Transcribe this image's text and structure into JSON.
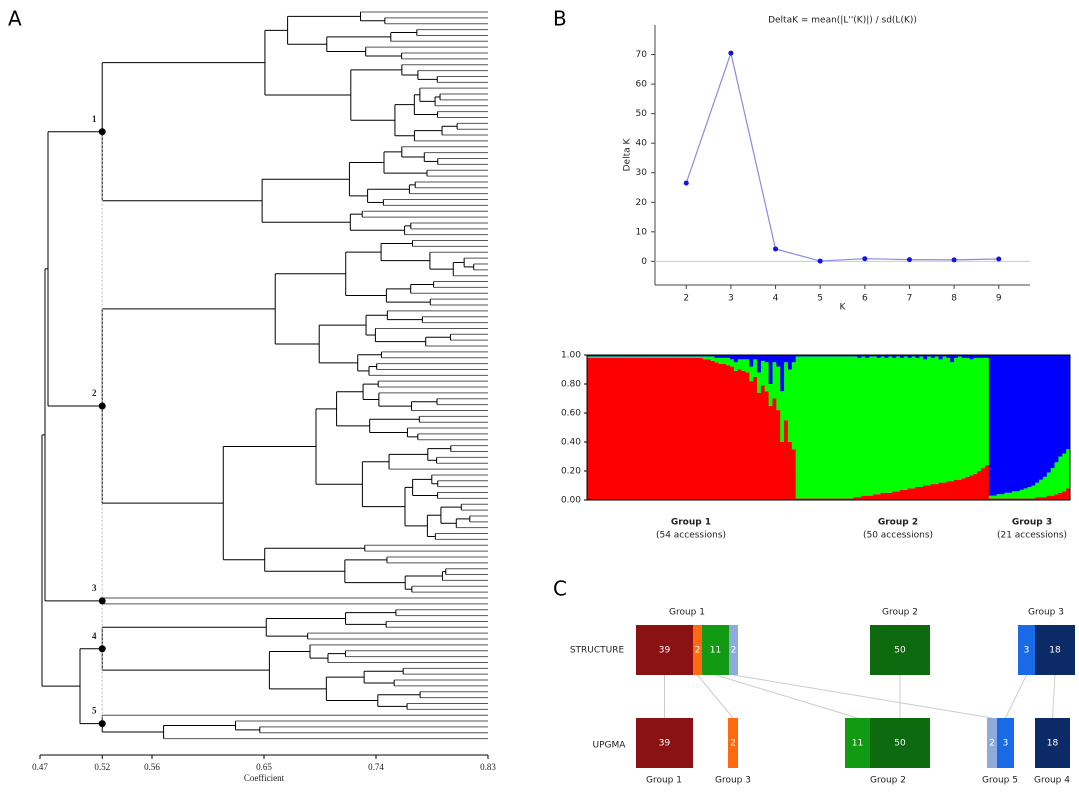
{
  "panel_labels": [
    "A",
    "B",
    "C"
  ],
  "chart_data": [
    {
      "type": "dendrogram",
      "xlabel": "Coefficient",
      "xlim": [
        0.47,
        0.83
      ],
      "xticks": [
        0.47,
        0.52,
        0.56,
        0.65,
        0.74,
        0.83
      ],
      "color": "#000000",
      "clusters": [
        {
          "label": "1",
          "height": 0.52
        },
        {
          "label": "2",
          "height": 0.52
        },
        {
          "label": "3",
          "height": 0.52
        },
        {
          "label": "4",
          "height": 0.52
        },
        {
          "label": "5",
          "height": 0.52
        }
      ]
    },
    {
      "type": "line",
      "title": "DeltaK = mean(|L''(K)|) / sd(L(K))",
      "xlabel": "K",
      "ylabel": "Delta K",
      "x": [
        2,
        3,
        4,
        5,
        6,
        7,
        8,
        9
      ],
      "values": [
        26.5,
        70.5,
        4.2,
        0.1,
        0.9,
        0.6,
        0.5,
        0.8
      ],
      "xlim": [
        1.3,
        9.7
      ],
      "xticks": [
        2,
        3,
        4,
        5,
        6,
        7,
        8,
        9
      ],
      "ylim": [
        -8,
        80
      ],
      "yticks": [
        0,
        10,
        20,
        30,
        40,
        50,
        60,
        70
      ],
      "color": "#8a8ae6",
      "marker_color": "#1414e0"
    },
    {
      "type": "stacked-bar",
      "ylim": [
        0,
        1
      ],
      "yticks": [
        {
          "value": 0,
          "label": "0.00"
        },
        {
          "value": 0.2,
          "label": "0.20"
        },
        {
          "value": 0.4,
          "label": "0.40"
        },
        {
          "value": 0.6,
          "label": "0.60"
        },
        {
          "value": 0.8,
          "label": "0.80"
        },
        {
          "value": 1,
          "label": "1.00"
        }
      ],
      "series": [
        {
          "color": "#ff0000",
          "values": [
            0.98,
            0.98,
            0.98,
            0.98,
            0.98,
            0.98,
            0.98,
            0.98,
            0.98,
            0.98,
            0.98,
            0.98,
            0.98,
            0.98,
            0.98,
            0.98,
            0.98,
            0.98,
            0.98,
            0.98,
            0.98,
            0.98,
            0.98,
            0.98,
            0.98,
            0.98,
            0.98,
            0.98,
            0.98,
            0.98,
            0.97,
            0.97,
            0.96,
            0.95,
            0.94,
            0.94,
            0.93,
            0.92,
            0.89,
            0.9,
            0.89,
            0.88,
            0.82,
            0.85,
            0.74,
            0.79,
            0.75,
            0.65,
            0.7,
            0.62,
            0.4,
            0.55,
            0.4,
            0.35,
            0.01,
            0.01,
            0.01,
            0.01,
            0.01,
            0.01,
            0.01,
            0.01,
            0.01,
            0.01,
            0.01,
            0.01,
            0.01,
            0.01,
            0.01,
            0.02,
            0.02,
            0.03,
            0.03,
            0.03,
            0.04,
            0.04,
            0.05,
            0.05,
            0.05,
            0.06,
            0.06,
            0.07,
            0.07,
            0.08,
            0.08,
            0.09,
            0.09,
            0.1,
            0.1,
            0.11,
            0.11,
            0.12,
            0.12,
            0.13,
            0.13,
            0.14,
            0.14,
            0.15,
            0.16,
            0.17,
            0.18,
            0.2,
            0.22,
            0.24,
            0.01,
            0.01,
            0.01,
            0.01,
            0.01,
            0.01,
            0.01,
            0.01,
            0.01,
            0.01,
            0.01,
            0.01,
            0.02,
            0.02,
            0.02,
            0.03,
            0.03,
            0.04,
            0.05,
            0.06,
            0.08
          ]
        },
        {
          "color": "#00ff00",
          "values": [
            0.01,
            0.01,
            0.01,
            0.01,
            0.01,
            0.01,
            0.01,
            0.01,
            0.01,
            0.01,
            0.01,
            0.01,
            0.01,
            0.01,
            0.01,
            0.01,
            0.01,
            0.01,
            0.01,
            0.01,
            0.01,
            0.01,
            0.01,
            0.01,
            0.01,
            0.01,
            0.01,
            0.01,
            0.01,
            0.01,
            0.02,
            0.02,
            0.03,
            0.03,
            0.04,
            0.04,
            0.05,
            0.05,
            0.06,
            0.07,
            0.08,
            0.09,
            0.1,
            0.12,
            0.14,
            0.17,
            0.2,
            0.15,
            0.25,
            0.3,
            0.35,
            0.4,
            0.5,
            0.6,
            0.98,
            0.98,
            0.98,
            0.98,
            0.98,
            0.98,
            0.98,
            0.98,
            0.98,
            0.98,
            0.98,
            0.98,
            0.98,
            0.98,
            0.98,
            0.97,
            0.96,
            0.96,
            0.95,
            0.96,
            0.95,
            0.94,
            0.94,
            0.93,
            0.94,
            0.92,
            0.93,
            0.91,
            0.92,
            0.9,
            0.91,
            0.89,
            0.9,
            0.87,
            0.89,
            0.87,
            0.88,
            0.85,
            0.87,
            0.85,
            0.82,
            0.84,
            0.85,
            0.83,
            0.82,
            0.8,
            0.8,
            0.78,
            0.76,
            0.74,
            0.02,
            0.02,
            0.03,
            0.03,
            0.04,
            0.04,
            0.05,
            0.05,
            0.06,
            0.07,
            0.08,
            0.09,
            0.1,
            0.12,
            0.14,
            0.16,
            0.19,
            0.22,
            0.25,
            0.26,
            0.27
          ]
        },
        {
          "color": "#0000ff",
          "values": [
            0.01,
            0.01,
            0.01,
            0.01,
            0.01,
            0.01,
            0.01,
            0.01,
            0.01,
            0.01,
            0.01,
            0.01,
            0.01,
            0.01,
            0.01,
            0.01,
            0.01,
            0.01,
            0.01,
            0.01,
            0.01,
            0.01,
            0.01,
            0.01,
            0.01,
            0.01,
            0.01,
            0.01,
            0.01,
            0.01,
            0.01,
            0.01,
            0.01,
            0.02,
            0.02,
            0.02,
            0.02,
            0.03,
            0.05,
            0.03,
            0.03,
            0.03,
            0.08,
            0.03,
            0.12,
            0.04,
            0.05,
            0.2,
            0.05,
            0.08,
            0.25,
            0.05,
            0.1,
            0.05,
            0.01,
            0.01,
            0.01,
            0.01,
            0.01,
            0.01,
            0.01,
            0.01,
            0.01,
            0.01,
            0.01,
            0.01,
            0.01,
            0.01,
            0.01,
            0.01,
            0.02,
            0.01,
            0.02,
            0.01,
            0.01,
            0.02,
            0.01,
            0.02,
            0.01,
            0.02,
            0.01,
            0.02,
            0.01,
            0.02,
            0.01,
            0.02,
            0.01,
            0.03,
            0.01,
            0.02,
            0.01,
            0.03,
            0.01,
            0.02,
            0.05,
            0.02,
            0.01,
            0.02,
            0.02,
            0.03,
            0.02,
            0.02,
            0.02,
            0.02,
            0.97,
            0.97,
            0.96,
            0.96,
            0.95,
            0.95,
            0.94,
            0.94,
            0.93,
            0.92,
            0.91,
            0.9,
            0.88,
            0.86,
            0.84,
            0.81,
            0.78,
            0.74,
            0.7,
            0.68,
            0.65
          ]
        }
      ],
      "groups": [
        {
          "label": "Group 1",
          "note": "(54 accessions)"
        },
        {
          "label": "Group 2",
          "note": "(50 accessions)"
        },
        {
          "label": "Group 3",
          "note": "(21 accessions)"
        }
      ]
    }
  ],
  "diagram": {
    "rows": [
      {
        "name": "STRUCTURE",
        "groups": [
          {
            "label": "Group 1",
            "parts": [
              {
                "n": 39,
                "color": "#8b1212"
              },
              {
                "n": 2,
                "color": "#ff6a10"
              },
              {
                "n": 11,
                "color": "#129a12"
              },
              {
                "n": 2,
                "color": "#8faadc"
              }
            ]
          },
          {
            "label": "Group 2",
            "parts": [
              {
                "n": 50,
                "color": "#0e6a0e"
              }
            ]
          },
          {
            "label": "Group 3",
            "parts": [
              {
                "n": 3,
                "color": "#1a6ae8"
              },
              {
                "n": 18,
                "color": "#0c2a66"
              }
            ]
          }
        ]
      },
      {
        "name": "UPGMA",
        "groups": [
          {
            "label": "Group 1",
            "parts": [
              {
                "n": 39,
                "color": "#8b1212"
              }
            ]
          },
          {
            "label": "Group 3",
            "parts": [
              {
                "n": 2,
                "color": "#ff6a10"
              }
            ]
          },
          {
            "label": "Group 2",
            "parts": [
              {
                "n": 11,
                "color": "#129a12"
              },
              {
                "n": 50,
                "color": "#0e6a0e"
              }
            ]
          },
          {
            "label": "Group 5",
            "parts": [
              {
                "n": 2,
                "color": "#8faadc"
              },
              {
                "n": 3,
                "color": "#1a6ae8"
              }
            ]
          },
          {
            "label": "Group 4",
            "parts": [
              {
                "n": 18,
                "color": "#0c2a66"
              }
            ]
          }
        ]
      }
    ]
  }
}
